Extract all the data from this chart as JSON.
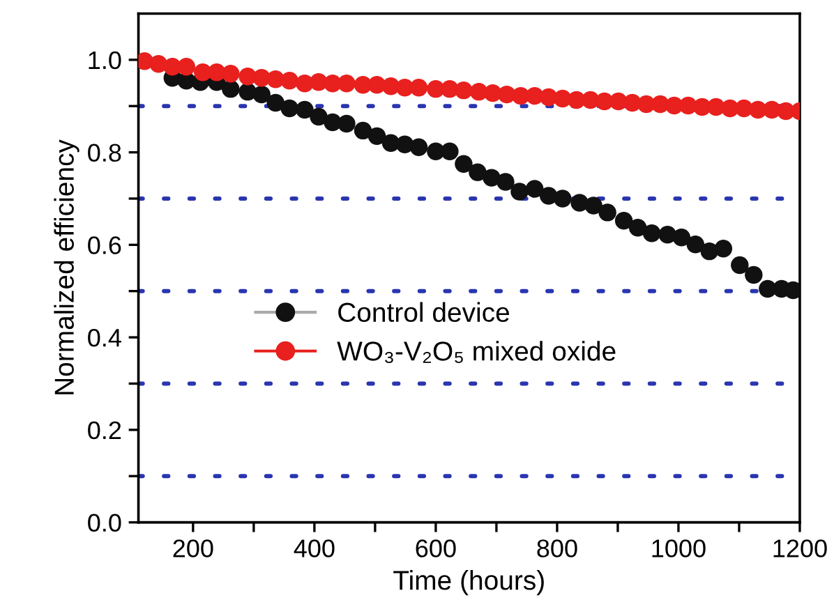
{
  "chart_data": {
    "type": "scatter",
    "xlabel": "Time (hours)",
    "ylabel": "Normalized efficiency",
    "xlim": [
      110,
      1200
    ],
    "ylim": [
      0,
      1.1
    ],
    "xticks": [
      200,
      {
        "value": 300,
        "label": null
      },
      400,
      {
        "value": 500,
        "label": null
      },
      600,
      {
        "value": 700,
        "label": null
      },
      800,
      {
        "value": 900,
        "label": null
      },
      1000,
      {
        "value": 1100,
        "label": null
      },
      1200
    ],
    "yticks": [
      {
        "value": 0,
        "label": "0.0"
      },
      {
        "value": 0.1,
        "label": null
      },
      {
        "value": 0.2,
        "label": "0.2"
      },
      {
        "value": 0.3,
        "label": null
      },
      {
        "value": 0.4,
        "label": "0.4"
      },
      {
        "value": 0.5,
        "label": null
      },
      {
        "value": 0.6,
        "label": "0.6"
      },
      {
        "value": 0.7,
        "label": null
      },
      {
        "value": 0.8,
        "label": "0.8"
      },
      {
        "value": 0.9,
        "label": null
      },
      {
        "value": 1.0,
        "label": "1.0"
      }
    ],
    "ref_lines": [
      {
        "axis": "y",
        "value": 0.1,
        "color": "#2a35b0",
        "line_style": "dotted"
      },
      {
        "axis": "y",
        "value": 0.3,
        "color": "#2a35b0",
        "line_style": "dotted"
      },
      {
        "axis": "y",
        "value": 0.5,
        "color": "#2a35b0",
        "line_style": "dotted"
      },
      {
        "axis": "y",
        "value": 0.7,
        "color": "#2a35b0",
        "line_style": "dotted"
      },
      {
        "axis": "y",
        "value": 0.9,
        "color": "#2a35b0",
        "line_style": "dotted"
      }
    ],
    "marker": "circle",
    "legend": "center",
    "grid": false,
    "series": [
      {
        "name": "Control device",
        "color": "#111111",
        "x": [
          166,
          189,
          212,
          239,
          262,
          290,
          313,
          336,
          359,
          384,
          407,
          430,
          453,
          480,
          503,
          526,
          549,
          572,
          600,
          623,
          646,
          669,
          692,
          715,
          738,
          763,
          786,
          809,
          837,
          860,
          883,
          910,
          933,
          956,
          982,
          1005,
          1028,
          1051,
          1074,
          1101,
          1124,
          1147,
          1170,
          1189
        ],
        "values": [
          0.961,
          0.955,
          0.952,
          0.952,
          0.937,
          0.931,
          0.925,
          0.907,
          0.895,
          0.892,
          0.877,
          0.865,
          0.862,
          0.847,
          0.835,
          0.82,
          0.817,
          0.811,
          0.802,
          0.802,
          0.775,
          0.757,
          0.745,
          0.736,
          0.715,
          0.721,
          0.706,
          0.7,
          0.691,
          0.685,
          0.67,
          0.652,
          0.637,
          0.625,
          0.622,
          0.616,
          0.601,
          0.586,
          0.592,
          0.556,
          0.535,
          0.505,
          0.505,
          0.502
        ]
      },
      {
        "name": "WO₃-V₂O₅ mixed oxide",
        "color": "#e8201e",
        "x": [
          120,
          143,
          166,
          189,
          216,
          239,
          262,
          290,
          313,
          336,
          359,
          384,
          407,
          430,
          453,
          480,
          503,
          526,
          549,
          572,
          600,
          623,
          646,
          671,
          694,
          717,
          740,
          763,
          786,
          809,
          832,
          855,
          878,
          901,
          924,
          947,
          970,
          993,
          1016,
          1039,
          1062,
          1085,
          1108,
          1131,
          1154,
          1177,
          1200
        ],
        "values": [
          0.997,
          0.991,
          0.985,
          0.985,
          0.973,
          0.973,
          0.97,
          0.964,
          0.961,
          0.958,
          0.955,
          0.949,
          0.952,
          0.949,
          0.949,
          0.946,
          0.946,
          0.943,
          0.94,
          0.94,
          0.937,
          0.937,
          0.934,
          0.931,
          0.928,
          0.925,
          0.922,
          0.922,
          0.919,
          0.916,
          0.913,
          0.913,
          0.91,
          0.91,
          0.907,
          0.904,
          0.904,
          0.901,
          0.901,
          0.898,
          0.898,
          0.895,
          0.895,
          0.892,
          0.892,
          0.889,
          0.889
        ]
      }
    ]
  }
}
